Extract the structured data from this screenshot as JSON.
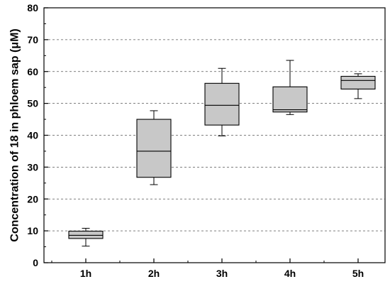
{
  "chart_data": {
    "type": "box",
    "title": "",
    "xlabel": "",
    "ylabel": "Concentration of 18 in phloem sap (μM)",
    "ylim": [
      0,
      80
    ],
    "yticks": [
      0,
      10,
      20,
      30,
      40,
      50,
      60,
      70,
      80
    ],
    "grid": "horizontal dashed",
    "categories": [
      "1h",
      "2h",
      "3h",
      "4h",
      "5h"
    ],
    "boxes": [
      {
        "category": "1h",
        "whisker_low": 5.2,
        "q1": 7.6,
        "median": 8.6,
        "q3": 9.9,
        "whisker_high": 10.8
      },
      {
        "category": "2h",
        "whisker_low": 24.5,
        "q1": 26.8,
        "median": 35.0,
        "q3": 45.0,
        "whisker_high": 47.7
      },
      {
        "category": "3h",
        "whisker_low": 39.8,
        "q1": 43.2,
        "median": 49.4,
        "q3": 56.3,
        "whisker_high": 61.0
      },
      {
        "category": "4h",
        "whisker_low": 46.5,
        "q1": 47.3,
        "median": 48.0,
        "q3": 55.2,
        "whisker_high": 63.5
      },
      {
        "category": "5h",
        "whisker_low": 51.5,
        "q1": 54.5,
        "median": 57.2,
        "q3": 58.5,
        "whisker_high": 59.3
      }
    ],
    "colors": {
      "box_fill": "#c8c8c8",
      "stroke": "#000000",
      "grid": "#555555"
    }
  }
}
